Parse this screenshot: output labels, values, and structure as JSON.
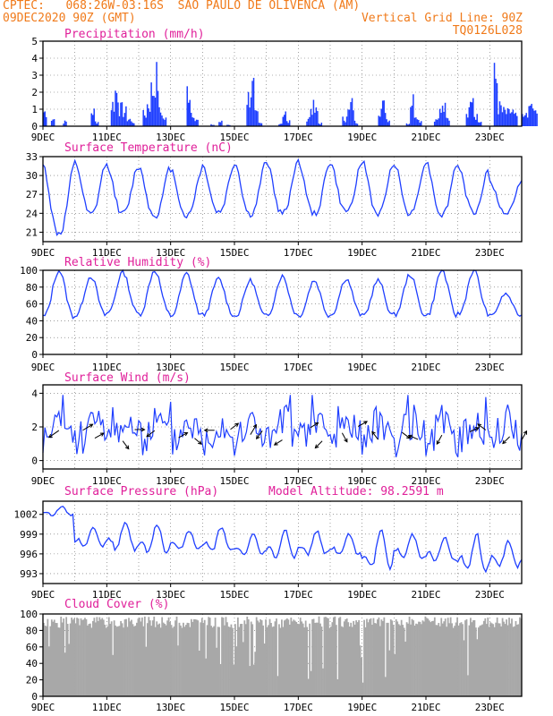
{
  "header": {
    "line1": "CPTEC:   068:26W-03:16S  SAO PAULO DE OLIVENCA (AM)",
    "line2": "09DEC2020 90Z (GMT)",
    "right1": "Vertical Grid Line: 90Z",
    "right2": "TQ0126L028"
  },
  "colors": {
    "header": "#f07a1a",
    "title": "#e0209a",
    "series": "#1f3fff",
    "cloud": "#a8a8a8",
    "grid": "#666666"
  },
  "x_ticks": [
    "9DEC",
    "11DEC",
    "13DEC",
    "15DEC",
    "17DEC",
    "19DEC",
    "21DEC",
    "23DEC"
  ],
  "chart_data": [
    {
      "type": "bar",
      "title": "Precipitation (mm/h)",
      "ylim": [
        0,
        5
      ],
      "yticks": [
        0,
        1,
        2,
        3,
        4,
        5
      ],
      "x_start": "2020-12-09",
      "x_end": "2020-12-24",
      "days": [
        [
          1.0,
          0,
          0.5,
          0,
          0,
          0.3,
          0,
          0
        ],
        [
          0,
          0,
          0,
          0,
          1.0,
          0.3,
          0,
          0
        ],
        [
          0,
          1.5,
          2.4,
          1.2,
          1.0,
          0.5,
          0.3,
          0
        ],
        [
          0,
          0.8,
          1.5,
          2.5,
          3.3,
          1.0,
          0.5,
          0
        ],
        [
          0,
          0,
          0,
          0,
          2.5,
          1.0,
          0.4,
          0
        ],
        [
          0,
          0,
          0.1,
          0,
          0.3,
          0,
          0.1,
          0
        ],
        [
          0,
          0,
          0,
          2.0,
          2.6,
          0.8,
          0.2,
          0
        ],
        [
          0,
          0,
          0,
          0.2,
          0.9,
          0.3,
          0,
          0
        ],
        [
          0,
          0,
          0.6,
          1.3,
          1.0,
          0.2,
          0,
          0
        ],
        [
          0,
          0,
          0,
          0.5,
          1.0,
          1.5,
          0.3,
          0
        ],
        [
          0,
          0,
          0,
          0,
          1.2,
          1.4,
          0.5,
          0
        ],
        [
          0,
          0,
          0,
          0.2,
          1.8,
          0.9,
          0.4,
          0
        ],
        [
          0,
          0,
          0.5,
          1.0,
          1.2,
          0.5,
          0,
          0
        ],
        [
          0,
          0,
          1.0,
          2.8,
          0.8,
          0.3,
          0,
          0
        ],
        [
          0,
          3.3,
          1.3,
          1.0,
          0.9,
          1.0,
          0.7,
          0
        ],
        [
          0.6,
          1.0,
          1.4,
          0.9,
          0,
          0,
          0,
          0
        ]
      ]
    },
    {
      "type": "line",
      "title": "Surface Temperature (nC)",
      "ylim": [
        19.5,
        33
      ],
      "yticks": [
        21,
        24,
        27,
        30,
        33
      ],
      "x_start": "2020-12-09",
      "x_end": "2020-12-24",
      "min_daily": [
        20.8,
        23.8,
        24.0,
        23.6,
        23.6,
        24.2,
        23.8,
        24.0,
        23.9,
        24.3,
        23.9,
        24.0,
        23.8,
        24.2,
        24.0
      ],
      "max_daily": [
        31.5,
        32.0,
        31.6,
        31.3,
        31.0,
        31.5,
        32.0,
        32.3,
        32.1,
        31.9,
        32.2,
        32.0,
        32.1,
        31.5,
        29.0
      ]
    },
    {
      "type": "line",
      "title": "Relative Humidity (%)",
      "ylim": [
        0,
        100
      ],
      "yticks": [
        0,
        20,
        40,
        60,
        80,
        100
      ],
      "x_start": "2020-12-09",
      "x_end": "2020-12-24",
      "min_daily": [
        45,
        46,
        49,
        48,
        46,
        47,
        45,
        47,
        46,
        47,
        46,
        47,
        46,
        48,
        46
      ],
      "max_daily": [
        100,
        93,
        98,
        100,
        96,
        90,
        88,
        93,
        88,
        90,
        88,
        95,
        100,
        100,
        72
      ]
    },
    {
      "type": "line",
      "title": "Surface Wind (m/s)",
      "ylim": [
        -0.5,
        4.5
      ],
      "yticks": [
        0,
        2,
        4
      ],
      "x_start": "2020-12-09",
      "x_end": "2020-12-24",
      "arrows": [
        {
          "date": "2020-12-09T12:00",
          "u": -1,
          "v": -0.7
        },
        {
          "date": "2020-12-10T06:00",
          "u": 1,
          "v": 0.6
        },
        {
          "date": "2020-12-10T15:00",
          "u": 0.9,
          "v": 0.5
        },
        {
          "date": "2020-12-11T12:00",
          "u": 0.6,
          "v": -0.8
        },
        {
          "date": "2020-12-11T21:00",
          "u": 1,
          "v": 0
        },
        {
          "date": "2020-12-12T12:00",
          "u": -0.8,
          "v": -0.6
        },
        {
          "date": "2020-12-13T06:00",
          "u": 0.9,
          "v": 0.5
        },
        {
          "date": "2020-12-13T18:00",
          "u": 0.7,
          "v": -0.6
        },
        {
          "date": "2020-12-14T09:00",
          "u": -1,
          "v": 0
        },
        {
          "date": "2020-12-14T21:00",
          "u": 0.8,
          "v": 0.6
        },
        {
          "date": "2020-12-15T12:00",
          "u": 0.6,
          "v": 1
        },
        {
          "date": "2020-12-15T21:00",
          "u": -0.6,
          "v": -0.8
        },
        {
          "date": "2020-12-16T12:00",
          "u": -0.8,
          "v": -0.5
        },
        {
          "date": "2020-12-17T09:00",
          "u": 0.8,
          "v": 0.5
        },
        {
          "date": "2020-12-17T18:00",
          "u": -0.7,
          "v": -0.7
        },
        {
          "date": "2020-12-18T09:00",
          "u": 0.5,
          "v": -0.9
        },
        {
          "date": "2020-12-18T21:00",
          "u": 0.9,
          "v": 0.5
        },
        {
          "date": "2020-12-19T12:00",
          "u": -0.6,
          "v": 0.8
        },
        {
          "date": "2020-12-20T06:00",
          "u": 0.8,
          "v": -0.6
        },
        {
          "date": "2020-12-20T18:00",
          "u": -0.9,
          "v": 0.4
        },
        {
          "date": "2020-12-21T12:00",
          "u": -0.5,
          "v": -0.9
        },
        {
          "date": "2020-12-22T09:00",
          "u": 0.9,
          "v": 0.4
        },
        {
          "date": "2020-12-22T21:00",
          "u": -0.8,
          "v": 0.6
        },
        {
          "date": "2020-12-23T15:00",
          "u": -0.7,
          "v": -0.7
        },
        {
          "date": "2020-12-24T00:00",
          "u": 0.5,
          "v": 0.9
        }
      ]
    },
    {
      "type": "line",
      "title": "Surface Pressure (hPa)",
      "annotation": "Model Altitude: 98.2591 m",
      "ylim": [
        991.5,
        1004
      ],
      "yticks": [
        993,
        996,
        999,
        1002
      ],
      "x_start": "2020-12-09",
      "x_end": "2020-12-24",
      "min_daily": [
        1001.5,
        996.5,
        995.5,
        995.0,
        996.0,
        995.5,
        995.0,
        994.5,
        995.0,
        995.0,
        992.5,
        994.5,
        994.0,
        992.0,
        993.0
      ],
      "max_daily": [
        1003.2,
        1000.0,
        1001.0,
        1000.5,
        999.5,
        1000.0,
        999.0,
        999.5,
        999.5,
        999.0,
        999.5,
        999.0,
        998.5,
        999.0,
        998.0
      ]
    },
    {
      "type": "bar",
      "title": "Cloud Cover (%)",
      "ylim": [
        0,
        100
      ],
      "yticks": [
        0,
        20,
        40,
        60,
        80,
        100
      ],
      "x_start": "2020-12-09",
      "x_end": "2020-12-24",
      "typical": 90
    }
  ]
}
